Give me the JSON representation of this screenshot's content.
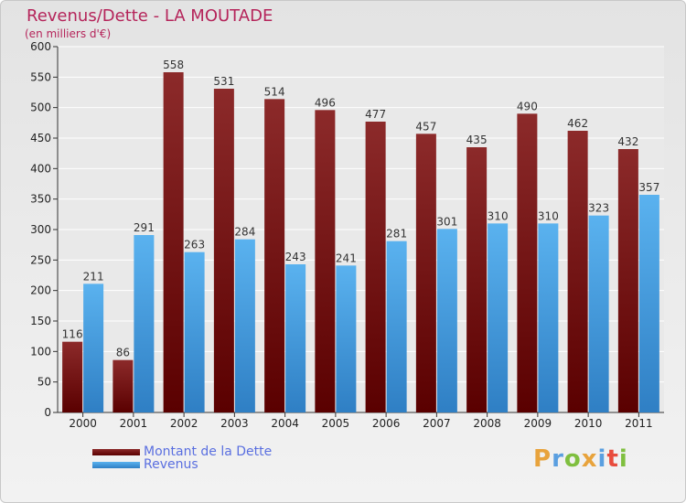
{
  "chart_data": {
    "type": "bar",
    "title": "Revenus/Dette - LA MOUTADE",
    "subtitle": "(en milliers d'€)",
    "categories": [
      "2000",
      "2001",
      "2002",
      "2003",
      "2004",
      "2005",
      "2006",
      "2007",
      "2008",
      "2009",
      "2010",
      "2011"
    ],
    "series": [
      {
        "name": "Montant de la Dette",
        "color": "#7a1414",
        "values": [
          116,
          86,
          558,
          531,
          514,
          496,
          477,
          457,
          435,
          490,
          462,
          432
        ]
      },
      {
        "name": "Revenus",
        "color": "#4aa3e6",
        "values": [
          211,
          291,
          263,
          284,
          243,
          241,
          281,
          301,
          310,
          310,
          323,
          357
        ]
      }
    ],
    "ylim": [
      0,
      600
    ],
    "yticks": [
      0,
      50,
      100,
      150,
      200,
      250,
      300,
      350,
      400,
      450,
      500,
      550,
      600
    ],
    "grid": true,
    "legend_position": "bottom-left"
  },
  "logo": {
    "text": "Proxiti",
    "colors": [
      "#e8a33c",
      "#5a9fe0",
      "#7fbf3f",
      "#e8a33c",
      "#5a9fe0",
      "#e84c3d",
      "#7fbf3f"
    ]
  }
}
